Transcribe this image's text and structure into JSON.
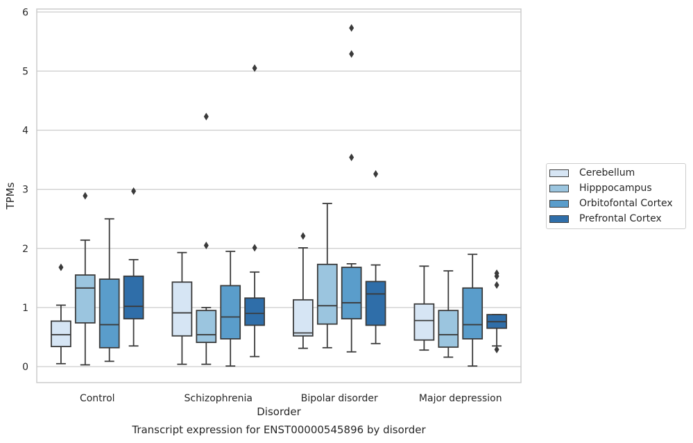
{
  "chart_data": {
    "type": "box",
    "xlabel": "Disorder",
    "ylabel": "TPMs",
    "ylim": [
      -0.27,
      6.05
    ],
    "yticks": [
      0,
      1,
      2,
      3,
      4,
      5,
      6
    ],
    "grid": "horizontal",
    "legend_position": "right",
    "categories": [
      "Control",
      "Schizophrenia",
      "Bipolar disorder",
      "Major depression"
    ],
    "series": [
      {
        "name": "Cerebellum",
        "color": "#d6e5f4",
        "boxes": [
          {
            "q1": 0.34,
            "median": 0.54,
            "q3": 0.77,
            "whislo": 0.05,
            "whishi": 1.04,
            "fliers": [
              1.68
            ]
          },
          {
            "q1": 0.52,
            "median": 0.91,
            "q3": 1.43,
            "whislo": 0.04,
            "whishi": 1.93,
            "fliers": []
          },
          {
            "q1": 0.52,
            "median": 0.57,
            "q3": 1.13,
            "whislo": 0.31,
            "whishi": 2.01,
            "fliers": [
              2.21
            ]
          },
          {
            "q1": 0.45,
            "median": 0.78,
            "q3": 1.06,
            "whislo": 0.28,
            "whishi": 1.7,
            "fliers": []
          }
        ]
      },
      {
        "name": "Hipppocampus",
        "color": "#9bc5df",
        "boxes": [
          {
            "q1": 0.74,
            "median": 1.33,
            "q3": 1.55,
            "whislo": 0.03,
            "whishi": 2.14,
            "fliers": [
              2.89
            ]
          },
          {
            "q1": 0.41,
            "median": 0.54,
            "q3": 0.95,
            "whislo": 0.04,
            "whishi": 1.0,
            "fliers": [
              2.05,
              4.23
            ]
          },
          {
            "q1": 0.72,
            "median": 1.03,
            "q3": 1.73,
            "whislo": 0.32,
            "whishi": 2.76,
            "fliers": []
          },
          {
            "q1": 0.33,
            "median": 0.54,
            "q3": 0.95,
            "whislo": 0.16,
            "whishi": 1.62,
            "fliers": []
          }
        ]
      },
      {
        "name": "Orbitofontal Cortex",
        "color": "#5a9dcb",
        "boxes": [
          {
            "q1": 0.32,
            "median": 0.71,
            "q3": 1.48,
            "whislo": 0.09,
            "whishi": 2.5,
            "fliers": []
          },
          {
            "q1": 0.47,
            "median": 0.84,
            "q3": 1.37,
            "whislo": 0.01,
            "whishi": 1.95,
            "fliers": []
          },
          {
            "q1": 0.81,
            "median": 1.08,
            "q3": 1.68,
            "whislo": 0.25,
            "whishi": 1.74,
            "fliers": [
              3.54,
              5.29,
              5.73
            ]
          },
          {
            "q1": 0.47,
            "median": 0.71,
            "q3": 1.33,
            "whislo": 0.01,
            "whishi": 1.9,
            "fliers": []
          }
        ]
      },
      {
        "name": "Prefrontal Cortex",
        "color": "#2f6ea9",
        "boxes": [
          {
            "q1": 0.81,
            "median": 1.02,
            "q3": 1.53,
            "whislo": 0.35,
            "whishi": 1.81,
            "fliers": [
              2.97
            ]
          },
          {
            "q1": 0.7,
            "median": 0.9,
            "q3": 1.16,
            "whislo": 0.17,
            "whishi": 1.6,
            "fliers": [
              2.01,
              5.05
            ]
          },
          {
            "q1": 0.7,
            "median": 1.23,
            "q3": 1.44,
            "whislo": 0.39,
            "whishi": 1.72,
            "fliers": [
              3.26
            ]
          },
          {
            "q1": 0.65,
            "median": 0.76,
            "q3": 0.88,
            "whislo": 0.35,
            "whishi": 0.88,
            "fliers": [
              0.29,
              1.38,
              1.53,
              1.58
            ]
          }
        ]
      }
    ],
    "caption": "Transcript expression for ENST00000545896 by disorder"
  }
}
